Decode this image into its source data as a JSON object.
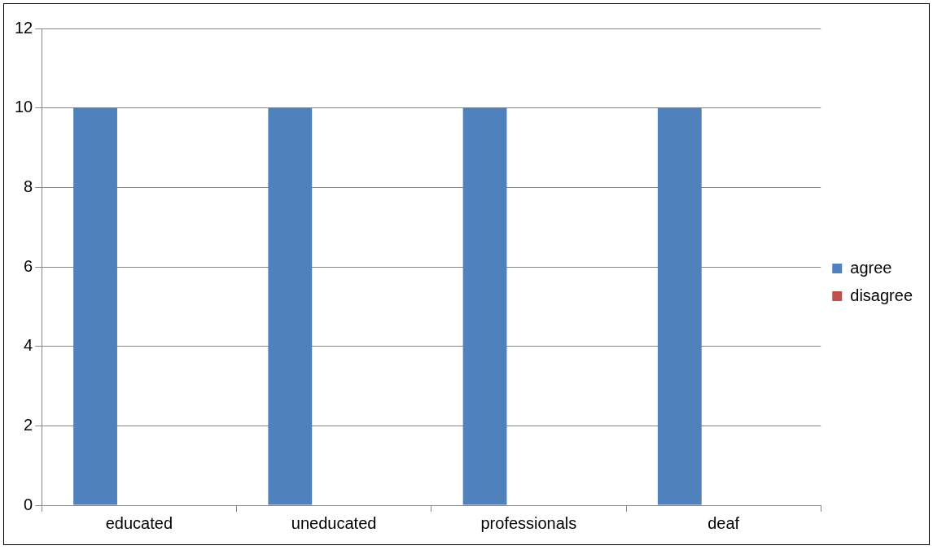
{
  "chart_data": {
    "type": "bar",
    "categories": [
      "educated",
      "uneducated",
      "professionals",
      "deaf"
    ],
    "series": [
      {
        "name": "agree",
        "color": "#4f81bd",
        "values": [
          10,
          10,
          10,
          10
        ]
      },
      {
        "name": "disagree",
        "color": "#c0504d",
        "values": [
          0,
          0,
          0,
          0
        ]
      }
    ],
    "ylim": [
      0,
      12
    ],
    "yticks": [
      0,
      2,
      4,
      6,
      8,
      10,
      12
    ],
    "grid": "y",
    "legend": "right"
  }
}
